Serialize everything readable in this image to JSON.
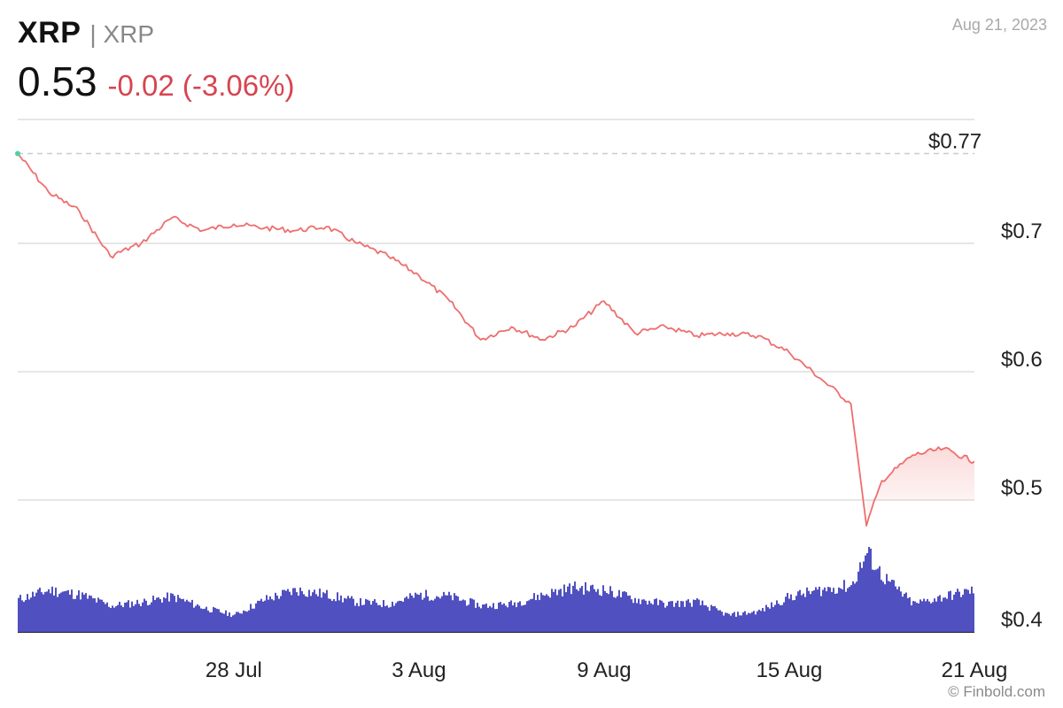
{
  "header": {
    "symbol": "XRP",
    "separator_name": "| XRP",
    "price": "0.53",
    "change": "-0.02 (-3.06%)",
    "date": "Aug 21, 2023"
  },
  "credit": "© Finbold.com",
  "colors": {
    "line": "#ee6e6e",
    "volume": "#5050c0",
    "change_text": "#d64550",
    "start_marker": "#4fd1a5",
    "grid": "#dddddd",
    "ref_line": "#cccccc"
  },
  "chart_data": {
    "type": "line",
    "series": [
      {
        "name": "",
        "x": [
          "2023-07-21",
          "2023-07-22",
          "2023-07-23",
          "2023-07-24",
          "2023-07-25",
          "2023-07-26",
          "2023-07-27",
          "2023-07-28",
          "2023-07-29",
          "2023-07-30",
          "2023-07-31",
          "2023-08-01",
          "2023-08-02",
          "2023-08-03",
          "2023-08-04",
          "2023-08-05",
          "2023-08-06",
          "2023-08-07",
          "2023-08-08",
          "2023-08-09",
          "2023-08-10",
          "2023-08-11",
          "2023-08-12",
          "2023-08-13",
          "2023-08-14",
          "2023-08-15",
          "2023-08-16",
          "2023-08-17",
          "2023-08-17T12:00",
          "2023-08-18",
          "2023-08-19",
          "2023-08-20",
          "2023-08-21"
        ],
        "values": [
          0.77,
          0.74,
          0.725,
          0.69,
          0.7,
          0.72,
          0.71,
          0.715,
          0.712,
          0.71,
          0.713,
          0.7,
          0.69,
          0.675,
          0.655,
          0.625,
          0.635,
          0.625,
          0.635,
          0.655,
          0.63,
          0.635,
          0.628,
          0.63,
          0.628,
          0.615,
          0.595,
          0.575,
          0.48,
          0.515,
          0.535,
          0.54,
          0.53
        ]
      }
    ],
    "volume": [
      0.35,
      0.45,
      0.4,
      0.28,
      0.32,
      0.38,
      0.26,
      0.18,
      0.35,
      0.45,
      0.4,
      0.32,
      0.3,
      0.4,
      0.38,
      0.28,
      0.3,
      0.4,
      0.48,
      0.45,
      0.35,
      0.3,
      0.32,
      0.18,
      0.22,
      0.38,
      0.45,
      0.5,
      0.85,
      0.6,
      0.3,
      0.38,
      0.45
    ],
    "yticks": [
      {
        "value": 0.7,
        "label": "$0.7"
      },
      {
        "value": 0.6,
        "label": "$0.6"
      },
      {
        "value": 0.5,
        "label": "$0.5"
      },
      {
        "value": 0.4,
        "label": "$0.4"
      }
    ],
    "ref_line": {
      "value": 0.77,
      "label": "$0.77"
    },
    "xticks": [
      {
        "x": "2023-07-28",
        "label": "28 Jul"
      },
      {
        "x": "2023-08-03",
        "label": "3 Aug"
      },
      {
        "x": "2023-08-09",
        "label": "9 Aug"
      },
      {
        "x": "2023-08-15",
        "label": "15 Aug"
      },
      {
        "x": "2023-08-21",
        "label": "21 Aug"
      }
    ],
    "xlim": [
      "2023-07-21",
      "2023-08-21"
    ],
    "ylim": [
      0.4,
      0.8
    ],
    "grid": true
  }
}
